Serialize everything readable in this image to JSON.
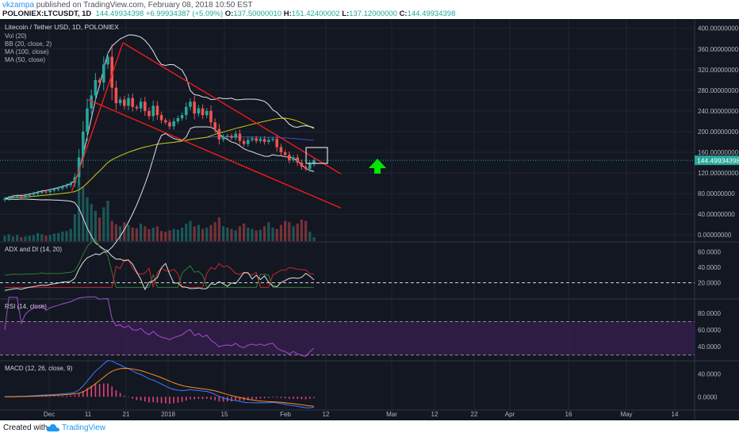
{
  "header": {
    "user": "vkzampa",
    "published_text": " published on TradingView.com, February 08, 2018 10:50 EST",
    "symbol_line": "POLONIEX:LTCUSDT, 1D",
    "last": "144.49934398",
    "change": "+6.99934387 (+5.09%)",
    "o_label": "O:",
    "o_value": "137.50000010",
    "h_label": "H:",
    "h_value": "151.42400002",
    "l_label": "L:",
    "l_value": "137.12000000",
    "c_label": "C:",
    "c_value": "144.49934398"
  },
  "legend": {
    "title": "Litecoin / Tether USD, 1D, POLONIEX",
    "items": [
      "Vol (20)",
      "BB (20, close, 2)",
      "MA (100, close)",
      "MA (50, close)"
    ]
  },
  "footer": {
    "created_with": "Created with",
    "brand": "TradingView"
  },
  "colors": {
    "background": "#131722",
    "up": "#26a69a",
    "down": "#ef5350",
    "channel": "#ff1a1a",
    "bollinger": "#dfe3ea",
    "ma100": "#3f4fc4",
    "ma50": "#c8c800",
    "arrow": "#00e600",
    "rsi_line": "#a64dcc",
    "rsi_band": "#3a1f52",
    "adx": "#dddddd",
    "di_plus": "#2e7d32",
    "di_minus": "#c62828",
    "macd": "#3d7eff",
    "signal": "#ff8c1a",
    "hist": "#e0437a"
  },
  "chart_data": {
    "type": "candlestick",
    "x_ticks": [
      "Dec",
      "11",
      "21",
      "2018",
      "15",
      "Feb",
      "12",
      "Mar",
      "12",
      "22",
      "Apr",
      "16",
      "May",
      "14"
    ],
    "price_axis": {
      "ticks": [
        "400.00000000",
        "360.00000000",
        "320.00000000",
        "280.00000000",
        "240.00000000",
        "200.00000000",
        "160.00000000",
        "120.00000000",
        "80.00000000",
        "40.00000000",
        "0.00000000"
      ],
      "range": [
        -12,
        418
      ],
      "last_label": "144.49934398"
    },
    "closes": [
      70,
      72,
      74,
      75,
      73,
      76,
      78,
      80,
      82,
      84,
      83,
      86,
      88,
      90,
      93,
      96,
      100,
      112,
      150,
      200,
      245,
      270,
      300,
      295,
      330,
      345,
      285,
      255,
      262,
      250,
      265,
      248,
      245,
      258,
      240,
      230,
      250,
      232,
      222,
      218,
      210,
      220,
      226,
      232,
      248,
      258,
      235,
      245,
      232,
      240,
      218,
      205,
      185,
      190,
      192,
      188,
      196,
      182,
      176,
      184,
      187,
      182,
      186,
      180,
      184,
      186,
      170,
      160,
      155,
      145,
      150,
      140,
      132,
      128,
      137.5,
      144.5
    ],
    "volumes": [
      8,
      10,
      7,
      9,
      6,
      7,
      8,
      9,
      12,
      10,
      8,
      9,
      11,
      12,
      14,
      15,
      18,
      40,
      95,
      80,
      65,
      55,
      45,
      35,
      50,
      60,
      30,
      25,
      22,
      28,
      24,
      20,
      19,
      26,
      22,
      18,
      20,
      22,
      15,
      14,
      16,
      18,
      17,
      20,
      26,
      30,
      22,
      24,
      18,
      20,
      24,
      28,
      35,
      22,
      20,
      18,
      16,
      22,
      26,
      20,
      18,
      16,
      17,
      22,
      28,
      20,
      18,
      24,
      30,
      28,
      22,
      26,
      32,
      30,
      14,
      6
    ],
    "channel": {
      "upper": [
        [
          "Dec 21",
          372
        ],
        [
          "Feb 14",
          118
        ]
      ],
      "lower": [
        [
          "Dec 12",
          262
        ],
        [
          "Feb 14",
          52
        ]
      ]
    },
    "panes": [
      {
        "title": "ADX and DI (14, 20)",
        "ticks": [
          "60.0000",
          "40.0000",
          "20.0000"
        ],
        "range": [
          0,
          72
        ],
        "level": 20
      },
      {
        "title": "RSI (14, close)",
        "ticks": [
          "80.0000",
          "60.0000",
          "40.0000"
        ],
        "range": [
          24,
          96
        ],
        "band": [
          30,
          70
        ]
      },
      {
        "title": "MACD (12, 26, close, 9)",
        "ticks": [
          "40.0000",
          "0.0000"
        ],
        "range": [
          -22,
          62
        ]
      }
    ]
  }
}
